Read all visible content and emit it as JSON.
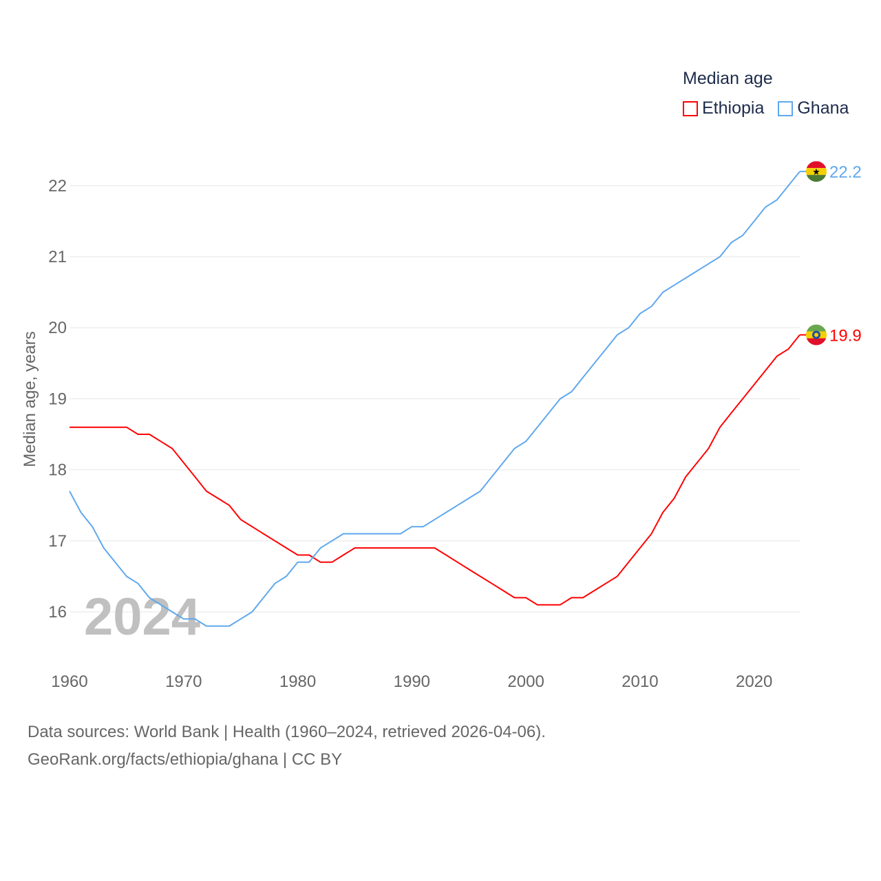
{
  "legend": {
    "title": "Median age"
  },
  "footer": {
    "line1": "Data sources: World Bank | Health (1960–2024, retrieved 2026-04-06).",
    "line2": "GeoRank.org/facts/ethiopia/ghana | CC BY"
  },
  "colors": {
    "ethiopia": "#ff0000",
    "ghana": "#5fa8ee",
    "grid": "#e6e6e6",
    "axis_text": "#666666",
    "year_watermark": "#c0c0c0"
  },
  "chart_data": {
    "type": "line",
    "title": "Median age",
    "xlabel": "",
    "ylabel": "Median age, years",
    "xlim": [
      1960,
      2024
    ],
    "ylim": [
      15.4,
      22.5
    ],
    "xticks": [
      1960,
      1970,
      1980,
      1990,
      2000,
      2010,
      2020
    ],
    "yticks": [
      16,
      17,
      18,
      19,
      20,
      21,
      22
    ],
    "grid": true,
    "legend_position": "top-right",
    "year_label": "2024",
    "x": [
      1960,
      1961,
      1962,
      1963,
      1964,
      1965,
      1966,
      1967,
      1968,
      1969,
      1970,
      1971,
      1972,
      1973,
      1974,
      1975,
      1976,
      1977,
      1978,
      1979,
      1980,
      1981,
      1982,
      1983,
      1984,
      1985,
      1986,
      1987,
      1988,
      1989,
      1990,
      1991,
      1992,
      1993,
      1994,
      1995,
      1996,
      1997,
      1998,
      1999,
      2000,
      2001,
      2002,
      2003,
      2004,
      2005,
      2006,
      2007,
      2008,
      2009,
      2010,
      2011,
      2012,
      2013,
      2014,
      2015,
      2016,
      2017,
      2018,
      2019,
      2020,
      2021,
      2022,
      2023,
      2024
    ],
    "series": [
      {
        "name": "Ethiopia",
        "color": "#ff0000",
        "end_label": "19.9",
        "values": [
          18.6,
          18.6,
          18.6,
          18.6,
          18.6,
          18.6,
          18.5,
          18.5,
          18.4,
          18.3,
          18.1,
          17.9,
          17.7,
          17.6,
          17.5,
          17.3,
          17.2,
          17.1,
          17.0,
          16.9,
          16.8,
          16.8,
          16.7,
          16.7,
          16.8,
          16.9,
          16.9,
          16.9,
          16.9,
          16.9,
          16.9,
          16.9,
          16.9,
          16.8,
          16.7,
          16.6,
          16.5,
          16.4,
          16.3,
          16.2,
          16.2,
          16.1,
          16.1,
          16.1,
          16.2,
          16.2,
          16.3,
          16.4,
          16.5,
          16.7,
          16.9,
          17.1,
          17.4,
          17.6,
          17.9,
          18.1,
          18.3,
          18.6,
          18.8,
          19.0,
          19.2,
          19.4,
          19.6,
          19.7,
          19.9
        ]
      },
      {
        "name": "Ghana",
        "color": "#5fa8ee",
        "end_label": "22.2",
        "values": [
          17.7,
          17.4,
          17.2,
          16.9,
          16.7,
          16.5,
          16.4,
          16.2,
          16.1,
          16.0,
          15.9,
          15.9,
          15.8,
          15.8,
          15.8,
          15.9,
          16.0,
          16.2,
          16.4,
          16.5,
          16.7,
          16.7,
          16.9,
          17.0,
          17.1,
          17.1,
          17.1,
          17.1,
          17.1,
          17.1,
          17.2,
          17.2,
          17.3,
          17.4,
          17.5,
          17.6,
          17.7,
          17.9,
          18.1,
          18.3,
          18.4,
          18.6,
          18.8,
          19.0,
          19.1,
          19.3,
          19.5,
          19.7,
          19.9,
          20.0,
          20.2,
          20.3,
          20.5,
          20.6,
          20.7,
          20.8,
          20.9,
          21.0,
          21.2,
          21.3,
          21.5,
          21.7,
          21.8,
          22.0,
          22.2
        ]
      }
    ]
  }
}
